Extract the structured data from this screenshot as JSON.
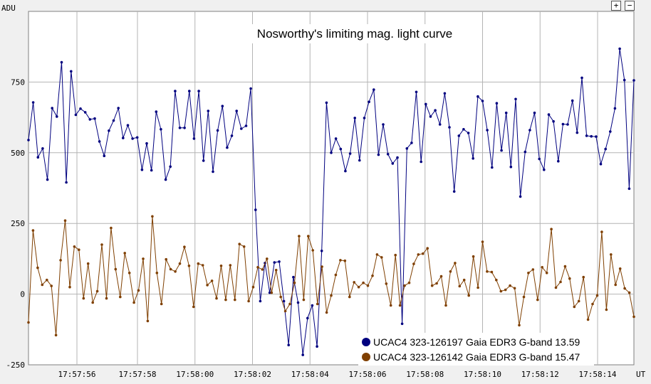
{
  "controls": {
    "zoom_in_label": "+",
    "zoom_out_label": "−"
  },
  "chart_data": {
    "type": "line",
    "title": "Nosworthy's limiting mag. light curve",
    "ylabel": "ADU",
    "xlabel": "UT",
    "ylim": [
      -250,
      1000
    ],
    "xlim": [
      0,
      100
    ],
    "y_ticks": [
      -250,
      0,
      250,
      500,
      750
    ],
    "x_ticks": [
      "17:57:56",
      "17:57:58",
      "17:58:00",
      "17:58:02",
      "17:58:04",
      "17:58:06",
      "17:58:08",
      "17:58:10",
      "17:58:12",
      "17:58:14"
    ],
    "x_tick_positions": [
      8,
      18,
      27.5,
      37,
      46.5,
      56,
      65.5,
      75,
      84.5,
      94
    ],
    "grid": true,
    "legend_position": "bottom-right",
    "series": [
      {
        "name": "UCAC4 323-126197 Gaia EDR3 G-band 13.59",
        "color": "#00007f",
        "values": [
          545,
          678,
          484,
          515,
          405,
          658,
          628,
          820,
          395,
          788,
          634,
          656,
          643,
          618,
          621,
          540,
          489,
          578,
          614,
          658,
          552,
          597,
          550,
          554,
          440,
          533,
          438,
          645,
          583,
          405,
          451,
          718,
          588,
          588,
          718,
          550,
          718,
          472,
          648,
          433,
          579,
          665,
          518,
          560,
          648,
          585,
          595,
          727,
          298,
          -25,
          110,
          5,
          112,
          115,
          -25,
          -180,
          60,
          -30,
          -215,
          -85,
          -40,
          -185,
          153,
          677,
          500,
          550,
          513,
          435,
          497,
          623,
          473,
          623,
          680,
          723,
          493,
          600,
          495,
          462,
          483,
          -105,
          515,
          535,
          715,
          468,
          672,
          628,
          650,
          600,
          710,
          590,
          363,
          560,
          583,
          570,
          480,
          699,
          683,
          580,
          448,
          675,
          508,
          641,
          450,
          690,
          345,
          503,
          580,
          641,
          478,
          440,
          635,
          611,
          470,
          601,
          600,
          684,
          571,
          765,
          560,
          558,
          557,
          460,
          513,
          575,
          657,
          868,
          757,
          373,
          756
        ],
        "markers": true
      },
      {
        "name": "UCAC4 323-126142 Gaia EDR3 G-band 15.47",
        "color": "#7f3f00",
        "values": [
          -100,
          225,
          93,
          33,
          50,
          29,
          -145,
          120,
          260,
          25,
          168,
          157,
          -15,
          108,
          -30,
          10,
          175,
          -15,
          234,
          88,
          -10,
          145,
          75,
          -30,
          13,
          125,
          -95,
          275,
          75,
          -35,
          123,
          88,
          80,
          108,
          167,
          100,
          -45,
          108,
          102,
          32,
          47,
          -15,
          100,
          -20,
          102,
          -20,
          177,
          168,
          -25,
          25,
          95,
          87,
          125,
          5,
          85,
          -10,
          -60,
          -35,
          40,
          205,
          -20,
          205,
          155,
          -35,
          97,
          -65,
          -5,
          68,
          120,
          118,
          -10,
          42,
          25,
          40,
          30,
          65,
          140,
          130,
          37,
          -40,
          138,
          -40,
          30,
          40,
          107,
          140,
          143,
          162,
          30,
          38,
          63,
          -40,
          80,
          110,
          28,
          50,
          -5,
          133,
          23,
          185,
          80,
          78,
          50,
          10,
          15,
          30,
          21,
          -110,
          -10,
          75,
          87,
          -20,
          95,
          75,
          230,
          23,
          43,
          98,
          55,
          -45,
          -25,
          60,
          -90,
          -35,
          -5,
          220,
          -55,
          140,
          33,
          90,
          20,
          5,
          -80
        ]
      }
    ]
  }
}
